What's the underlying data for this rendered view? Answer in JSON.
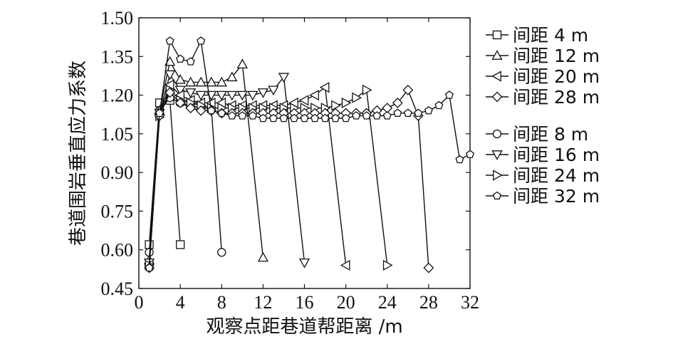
{
  "chart_data": {
    "type": "line",
    "title": "",
    "xlabel": "观察点距巷道帮距离 /m",
    "ylabel": "巷道围岩垂直应力系数",
    "xlim": [
      0,
      32
    ],
    "ylim": [
      0.45,
      1.5
    ],
    "xticks": [
      "0",
      "4",
      "8",
      "12",
      "16",
      "20",
      "24",
      "28",
      "32"
    ],
    "yticks": [
      "0.45",
      "0.60",
      "0.75",
      "0.90",
      "1.05",
      "1.20",
      "1.35",
      "1.50"
    ],
    "grid": false,
    "legend_position": "right",
    "series": [
      {
        "name": "间距 4 m",
        "marker": "square",
        "x": [
          1,
          2,
          3,
          4
        ],
        "y": [
          0.62,
          1.17,
          1.18,
          0.62
        ]
      },
      {
        "name": "间距 8 m",
        "marker": "circle",
        "x": [
          1,
          2,
          3,
          4,
          5,
          6,
          7,
          8
        ],
        "y": [
          0.59,
          1.14,
          1.19,
          1.17,
          1.16,
          1.15,
          1.15,
          0.59
        ]
      },
      {
        "name": "间距 12 m",
        "marker": "triangle-up",
        "x": [
          1,
          2,
          3,
          4,
          5,
          6,
          7,
          8,
          9,
          10,
          12
        ],
        "y": [
          0.56,
          1.14,
          1.33,
          1.26,
          1.25,
          1.25,
          1.25,
          1.25,
          1.27,
          1.32,
          0.57
        ]
      },
      {
        "name": "间距 16 m",
        "marker": "triangle-down",
        "x": [
          1,
          2,
          3,
          4,
          5,
          6,
          7,
          8,
          9,
          10,
          11,
          12,
          13,
          14,
          16
        ],
        "y": [
          0.55,
          1.13,
          1.28,
          1.22,
          1.21,
          1.2,
          1.2,
          1.2,
          1.2,
          1.2,
          1.2,
          1.21,
          1.22,
          1.27,
          0.55
        ]
      },
      {
        "name": "间距 20 m",
        "marker": "triangle-left",
        "x": [
          1,
          2,
          3,
          4,
          5,
          6,
          7,
          8,
          9,
          10,
          11,
          12,
          13,
          14,
          15,
          16,
          17,
          18,
          20
        ],
        "y": [
          0.54,
          1.13,
          1.24,
          1.2,
          1.18,
          1.17,
          1.17,
          1.17,
          1.16,
          1.16,
          1.16,
          1.16,
          1.16,
          1.16,
          1.17,
          1.18,
          1.2,
          1.23,
          0.54
        ]
      },
      {
        "name": "间距 24 m",
        "marker": "triangle-right",
        "x": [
          1,
          2,
          3,
          4,
          5,
          6,
          7,
          8,
          9,
          10,
          11,
          12,
          13,
          14,
          15,
          16,
          17,
          18,
          19,
          20,
          21,
          22,
          24
        ],
        "y": [
          0.54,
          1.12,
          1.22,
          1.18,
          1.17,
          1.16,
          1.15,
          1.15,
          1.15,
          1.15,
          1.15,
          1.15,
          1.15,
          1.15,
          1.15,
          1.15,
          1.15,
          1.15,
          1.16,
          1.17,
          1.19,
          1.22,
          0.54
        ]
      },
      {
        "name": "间距 28 m",
        "marker": "diamond",
        "x": [
          1,
          2,
          3,
          4,
          5,
          6,
          7,
          8,
          9,
          10,
          11,
          12,
          13,
          14,
          15,
          16,
          17,
          18,
          19,
          20,
          21,
          22,
          23,
          24,
          25,
          26,
          27,
          28
        ],
        "y": [
          0.53,
          1.12,
          1.21,
          1.17,
          1.15,
          1.14,
          1.14,
          1.13,
          1.13,
          1.13,
          1.13,
          1.13,
          1.13,
          1.13,
          1.13,
          1.13,
          1.13,
          1.13,
          1.13,
          1.13,
          1.13,
          1.13,
          1.14,
          1.15,
          1.17,
          1.22,
          1.12,
          0.53
        ]
      },
      {
        "name": "间距 32 m",
        "marker": "pentagon",
        "x": [
          1,
          2,
          3,
          4,
          5,
          6,
          7,
          8,
          9,
          10,
          11,
          12,
          13,
          14,
          15,
          16,
          17,
          18,
          19,
          20,
          21,
          22,
          23,
          24,
          25,
          26,
          27,
          28,
          29,
          30,
          31,
          32
        ],
        "y": [
          0.53,
          1.13,
          1.41,
          1.34,
          1.33,
          1.41,
          1.14,
          1.13,
          1.12,
          1.12,
          1.12,
          1.11,
          1.11,
          1.11,
          1.11,
          1.11,
          1.11,
          1.11,
          1.11,
          1.11,
          1.12,
          1.12,
          1.12,
          1.12,
          1.13,
          1.13,
          1.13,
          1.14,
          1.16,
          1.2,
          0.95,
          0.97
        ]
      }
    ],
    "legend_groups": [
      [
        0,
        2,
        4,
        6
      ],
      [
        1,
        3,
        5,
        7
      ]
    ]
  }
}
